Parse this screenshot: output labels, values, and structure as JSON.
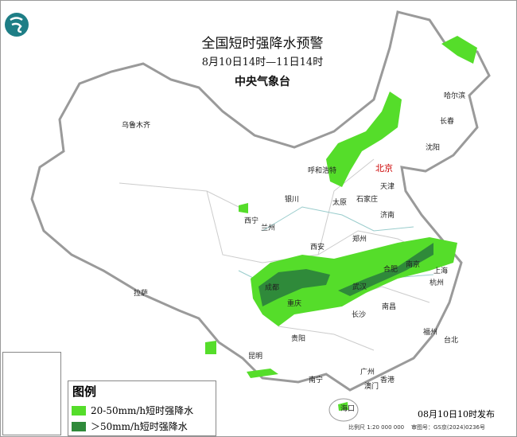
{
  "header": {
    "title": "全国短时强降水预警",
    "time_range": "8月10日14时—11日14时",
    "issuer": "中央气象台"
  },
  "legend": {
    "title": "图例",
    "items": [
      {
        "label": "20-50mm/h短时强降水",
        "color": "#55dd2a"
      },
      {
        "label": "＞50mm/h短时强降水",
        "color": "#2f8a3a"
      }
    ]
  },
  "footer": {
    "issue_time": "08月10日10时发布",
    "scale": "比例尺 1:20 000 000",
    "map_approval": "审图号：GS京(2024)0236号"
  },
  "cities": [
    {
      "name": "乌鲁木齐"
    },
    {
      "name": "哈尔滨"
    },
    {
      "name": "长春"
    },
    {
      "name": "沈阳"
    },
    {
      "name": "呼和浩特"
    },
    {
      "name": "北京"
    },
    {
      "name": "天津"
    },
    {
      "name": "银川"
    },
    {
      "name": "太原"
    },
    {
      "name": "石家庄"
    },
    {
      "name": "济南"
    },
    {
      "name": "西宁"
    },
    {
      "name": "兰州"
    },
    {
      "name": "郑州"
    },
    {
      "name": "西安"
    },
    {
      "name": "合肥"
    },
    {
      "name": "南京"
    },
    {
      "name": "上海"
    },
    {
      "name": "成都"
    },
    {
      "name": "武汉"
    },
    {
      "name": "杭州"
    },
    {
      "name": "拉萨"
    },
    {
      "name": "重庆"
    },
    {
      "name": "长沙"
    },
    {
      "name": "南昌"
    },
    {
      "name": "福州"
    },
    {
      "name": "贵阳"
    },
    {
      "name": "台北"
    },
    {
      "name": "昆明"
    },
    {
      "name": "南宁"
    },
    {
      "name": "广州"
    },
    {
      "name": "香港"
    },
    {
      "name": "澳门"
    },
    {
      "name": "海口"
    }
  ],
  "colors": {
    "moderate": "#55dd2a",
    "severe": "#2f8a3a",
    "border": "#999999",
    "capital": "#cc0000"
  }
}
